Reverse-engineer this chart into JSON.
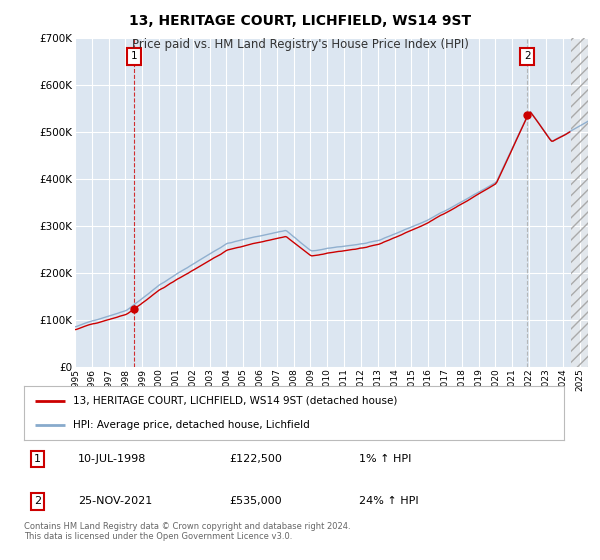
{
  "title": "13, HERITAGE COURT, LICHFIELD, WS14 9ST",
  "subtitle": "Price paid vs. HM Land Registry's House Price Index (HPI)",
  "background_color": "#dce6f1",
  "plot_bg_color": "#dce6f1",
  "grid_color": "#ffffff",
  "line1_color": "#cc0000",
  "line2_color": "#88aacc",
  "sale1_date_num": 1998.53,
  "sale1_price": 122500,
  "sale2_date_num": 2021.9,
  "sale2_price": 535000,
  "legend1": "13, HERITAGE COURT, LICHFIELD, WS14 9ST (detached house)",
  "legend2": "HPI: Average price, detached house, Lichfield",
  "label1_date": "10-JUL-1998",
  "label1_price": "£122,500",
  "label1_hpi": "1% ↑ HPI",
  "label2_date": "25-NOV-2021",
  "label2_price": "£535,000",
  "label2_hpi": "24% ↑ HPI",
  "footer": "Contains HM Land Registry data © Crown copyright and database right 2024.\nThis data is licensed under the Open Government Licence v3.0.",
  "ylim": [
    0,
    700000
  ],
  "xlim_start": 1995.0,
  "xlim_end": 2025.5
}
